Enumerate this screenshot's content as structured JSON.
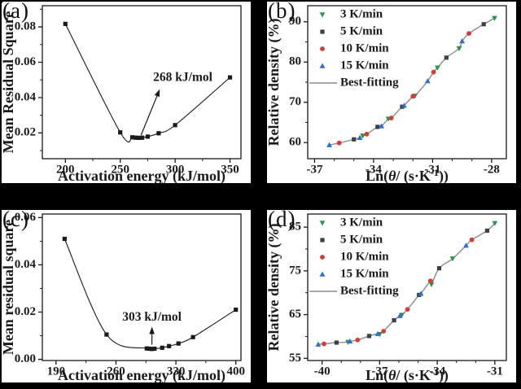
{
  "figure": {
    "background": "#000000",
    "panel_background": "#ffffff",
    "frame_color": "#1a1a1a"
  },
  "chart_data": [
    {
      "id": "a",
      "label": "(a)",
      "type": "line",
      "xlabel": "Activation energy (kJ/mol)",
      "ylabel": "Mean Residual Square",
      "xlim": [
        179,
        360
      ],
      "ylim": [
        0.0054,
        0.092
      ],
      "xticks": [
        200,
        250,
        300,
        350
      ],
      "xtick_labels": [
        "200",
        "250",
        "300",
        "350"
      ],
      "x_minor": [
        225,
        275,
        325
      ],
      "yticks": [
        0.02,
        0.04,
        0.06,
        0.08
      ],
      "ytick_labels": [
        "0.02",
        "0.04",
        "0.06",
        "0.08"
      ],
      "y_minor": [
        0.01,
        0.03,
        0.05,
        0.07,
        0.09
      ],
      "grid": false,
      "legend_position": "none",
      "series": [
        {
          "name": "mean-residual-square",
          "color": "#1a1a1a",
          "marker": "square",
          "line": true,
          "points": [
            [
              200,
              0.0817
            ],
            [
              250,
              0.0203
            ],
            [
              261,
              0.0175
            ],
            [
              264,
              0.0173
            ],
            [
              267,
              0.0172
            ],
            [
              270,
              0.0173
            ],
            [
              275,
              0.0179
            ],
            [
              285,
              0.0198
            ],
            [
              300,
              0.0244
            ],
            [
              350,
              0.0514
            ]
          ]
        }
      ],
      "annotation": {
        "text": "268 kJ/mol",
        "arrow_from": [
          269,
          0.0188
        ],
        "arrow_to": [
          286,
          0.0447
        ],
        "text_at": [
          280,
          0.0495
        ],
        "anchor": "start"
      }
    },
    {
      "id": "b",
      "label": "(b)",
      "type": "scatter",
      "xlabel_parts": {
        "pre": "Ln(",
        "italic": "θ",
        "mid": "/ (s·K",
        "sup": "-1",
        "post": "))"
      },
      "ylabel": "Relative density (%)",
      "xlim": [
        -37.35,
        -27.25
      ],
      "ylim": [
        56,
        94
      ],
      "xticks": [
        -37,
        -34,
        -31,
        -28
      ],
      "xtick_labels": [
        "-37",
        "-34",
        "-31",
        "-28"
      ],
      "x_minor": [
        -36,
        -35,
        -33,
        -32,
        -30,
        -29
      ],
      "yticks": [
        60,
        70,
        80,
        90
      ],
      "ytick_labels": [
        "60",
        "70",
        "80",
        "90"
      ],
      "y_minor": [
        65,
        75,
        85
      ],
      "grid": false,
      "legend_position": "top-left",
      "fit_label": "Best-fitting",
      "fit_color": "#8c8c8c",
      "series": [
        {
          "name": "3 K/min",
          "color": "#2a944a",
          "marker": "triangle-down",
          "points": [
            [
              -34.55,
              61.7
            ],
            [
              -33.25,
              65.9
            ],
            [
              -31.9,
              71.6
            ],
            [
              -30.75,
              78.6
            ],
            [
              -29.65,
              83.4
            ],
            [
              -27.85,
              90.9
            ]
          ]
        },
        {
          "name": "5 K/min",
          "color": "#3f3f3f",
          "marker": "square",
          "points": [
            [
              -35.0,
              60.8
            ],
            [
              -33.8,
              63.9
            ],
            [
              -32.55,
              68.9
            ],
            [
              -30.3,
              81.1
            ],
            [
              -28.4,
              89.4
            ]
          ]
        },
        {
          "name": "10 K/min",
          "color": "#d63b35",
          "marker": "circle",
          "points": [
            [
              -35.75,
              59.9
            ],
            [
              -34.35,
              62.1
            ],
            [
              -33.1,
              66.1
            ],
            [
              -32.0,
              71.5
            ],
            [
              -30.95,
              77.5
            ],
            [
              -29.15,
              87.1
            ]
          ]
        },
        {
          "name": "15 K/min",
          "color": "#2c6fce",
          "marker": "triangle-up",
          "points": [
            [
              -36.25,
              59.4
            ],
            [
              -34.7,
              61.2
            ],
            [
              -33.6,
              64.1
            ],
            [
              -32.45,
              69.2
            ],
            [
              -31.25,
              75.3
            ],
            [
              -29.5,
              85.2
            ]
          ]
        }
      ]
    },
    {
      "id": "c",
      "label": "(c)",
      "type": "line",
      "xlabel": "Activation energy (kJ/mol)",
      "ylabel": "Mean residual square",
      "xlim": [
        174,
        406
      ],
      "ylim": [
        -0.0005,
        0.0615
      ],
      "xticks": [
        190,
        260,
        330,
        400
      ],
      "xtick_labels": [
        "190",
        "260",
        "330",
        "400"
      ],
      "x_minor": [
        225,
        295,
        365
      ],
      "yticks": [
        0.0,
        0.02,
        0.04,
        0.06
      ],
      "ytick_labels": [
        "0.00",
        "0.02",
        "0.04",
        "0.06"
      ],
      "y_minor": [
        0.01,
        0.03,
        0.05
      ],
      "grid": false,
      "legend_position": "none",
      "series": [
        {
          "name": "mean-residual-square",
          "color": "#1a1a1a",
          "marker": "square",
          "line": true,
          "points": [
            [
              200,
              0.051
            ],
            [
              249,
              0.0105
            ],
            [
              296,
              0.0046
            ],
            [
              299,
              0.0045
            ],
            [
              302,
              0.0044
            ],
            [
              305,
              0.0045
            ],
            [
              314,
              0.0049
            ],
            [
              322,
              0.0056
            ],
            [
              333,
              0.0067
            ],
            [
              350,
              0.0094
            ],
            [
              400,
              0.021
            ]
          ]
        }
      ],
      "annotation": {
        "text": "303 kJ/mol",
        "arrow_from": [
          302,
          0.0062
        ],
        "arrow_to": [
          302,
          0.0138
        ],
        "text_at": [
          302,
          0.0164
        ],
        "anchor": "middle"
      }
    },
    {
      "id": "d",
      "label": "(d)",
      "type": "scatter",
      "xlabel_parts": {
        "pre": "Ln(",
        "italic": "θ",
        "mid": "/ (s·K",
        "sup": "-1",
        "post": "))"
      },
      "ylabel": "Relative density (%)",
      "xlim": [
        -40.75,
        -30.4
      ],
      "ylim": [
        54.5,
        88
      ],
      "xticks": [
        -40,
        -37,
        -34,
        -31
      ],
      "xtick_labels": [
        "-40",
        "-37",
        "-34",
        "-31"
      ],
      "x_minor": [
        -39,
        -38,
        -36,
        -35,
        -33,
        -32
      ],
      "yticks": [
        55,
        65,
        75,
        85
      ],
      "ytick_labels": [
        "55",
        "65",
        "75",
        "85"
      ],
      "y_minor": [
        60,
        70,
        80
      ],
      "grid": false,
      "legend_position": "top-left",
      "fit_label": "Best-fitting",
      "fit_color": "#8c8c8c",
      "series": [
        {
          "name": "3 K/min",
          "color": "#2a944a",
          "marker": "triangle-down",
          "points": [
            [
              -38.65,
              58.7
            ],
            [
              -37.0,
              60.5
            ],
            [
              -35.85,
              64.9
            ],
            [
              -34.3,
              71.9
            ],
            [
              -33.2,
              77.8
            ],
            [
              -31.0,
              85.9
            ]
          ]
        },
        {
          "name": "5 K/min",
          "color": "#3f3f3f",
          "marker": "square",
          "points": [
            [
              -39.25,
              58.6
            ],
            [
              -37.55,
              60.1
            ],
            [
              -36.25,
              63.7
            ],
            [
              -34.95,
              69.5
            ],
            [
              -33.9,
              75.6
            ],
            [
              -31.4,
              84.2
            ]
          ]
        },
        {
          "name": "10 K/min",
          "color": "#d63b35",
          "marker": "circle",
          "points": [
            [
              -39.9,
              58.3
            ],
            [
              -38.15,
              59.2
            ],
            [
              -36.8,
              61.2
            ],
            [
              -35.55,
              66.2
            ],
            [
              -34.35,
              72.7
            ],
            [
              -32.2,
              82.1
            ]
          ]
        },
        {
          "name": "15 K/min",
          "color": "#2c6fce",
          "marker": "triangle-up",
          "points": [
            [
              -40.2,
              58.2
            ],
            [
              -38.55,
              58.9
            ],
            [
              -37.1,
              60.6
            ],
            [
              -35.95,
              64.7
            ],
            [
              -34.85,
              69.8
            ],
            [
              -32.5,
              80.8
            ]
          ]
        }
      ]
    }
  ]
}
